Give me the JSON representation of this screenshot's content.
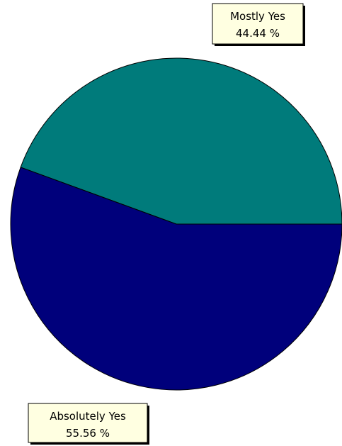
{
  "chart_data": {
    "type": "pie",
    "title": "",
    "slices": [
      {
        "name": "Mostly Yes",
        "value": 44.44,
        "label": "44.44 %",
        "color": "#007b7b"
      },
      {
        "name": "Absolutely Yes",
        "value": 55.56,
        "label": "55.56 %",
        "color": "#00007b"
      }
    ],
    "legend": "none",
    "data_labels": "callout boxes"
  }
}
